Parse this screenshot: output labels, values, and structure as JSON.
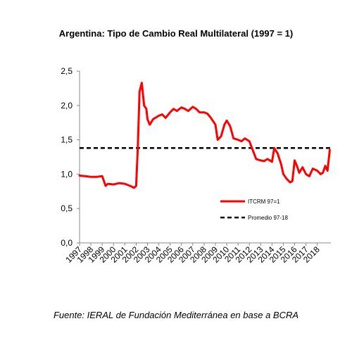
{
  "chart_data": {
    "type": "line",
    "title": "Argentina: Tipo de Cambio Real Multilateral (1997 = 1)",
    "source": "Fuente: IERAL de Fundación Mediterránea en base a BCRA",
    "ylim": [
      0,
      2.5
    ],
    "yticks": [
      "0,0",
      "0,5",
      "1,0",
      "1,5",
      "2,0",
      "2,5"
    ],
    "xticks": [
      "1997",
      "1998",
      "1999",
      "2000",
      "2001",
      "2002",
      "2003",
      "2004",
      "2005",
      "2006",
      "2007",
      "2008",
      "2009",
      "2010",
      "2011",
      "2012",
      "2013",
      "2014",
      "2015",
      "2016",
      "2017",
      "2018"
    ],
    "xlim": [
      1997,
      2019.2
    ],
    "legend_position": "lower-right",
    "colors": {
      "itcrm": "#ff0000",
      "promedio": "#000000"
    },
    "series": [
      {
        "name": "ITCRM 97=1",
        "x": [
          1997,
          1997.5,
          1998,
          1998.5,
          1999,
          1999.3,
          1999.5,
          2000,
          2000.5,
          2001,
          2001.3,
          2001.6,
          2001.8,
          2002,
          2002.15,
          2002.3,
          2002.5,
          2002.7,
          2002.9,
          2003,
          2003.2,
          2003.5,
          2004,
          2004.3,
          2004.6,
          2005,
          2005.3,
          2005.6,
          2006,
          2006.3,
          2006.6,
          2007,
          2007.3,
          2007.6,
          2008,
          2008.3,
          2008.6,
          2009,
          2009.2,
          2009.5,
          2009.8,
          2010,
          2010.3,
          2010.6,
          2011,
          2011.3,
          2011.6,
          2012,
          2012.3,
          2012.6,
          2013,
          2013.3,
          2013.6,
          2014,
          2014.2,
          2014.5,
          2014.8,
          2015,
          2015.3,
          2015.6,
          2015.8,
          2016,
          2016.2,
          2016.4,
          2016.7,
          2017,
          2017.3,
          2017.6,
          2018,
          2018.3,
          2018.5,
          2018.7,
          2018.9,
          2019,
          2019.1
        ],
        "y": [
          0.98,
          0.97,
          0.96,
          0.96,
          0.97,
          0.83,
          0.86,
          0.85,
          0.87,
          0.86,
          0.84,
          0.82,
          0.8,
          0.83,
          1.4,
          2.2,
          2.33,
          2.0,
          1.95,
          1.8,
          1.72,
          1.8,
          1.85,
          1.87,
          1.82,
          1.9,
          1.95,
          1.92,
          1.97,
          1.95,
          1.92,
          1.98,
          1.95,
          1.9,
          1.9,
          1.88,
          1.82,
          1.72,
          1.5,
          1.55,
          1.72,
          1.78,
          1.7,
          1.52,
          1.5,
          1.48,
          1.52,
          1.48,
          1.35,
          1.22,
          1.2,
          1.19,
          1.22,
          1.18,
          1.38,
          1.3,
          1.15,
          1.0,
          0.93,
          0.88,
          0.9,
          1.2,
          1.12,
          1.02,
          1.1,
          1.0,
          0.97,
          1.08,
          1.05,
          1.0,
          1.02,
          1.12,
          1.05,
          1.2,
          1.35
        ]
      },
      {
        "name": "Promedio 97-18",
        "x": [
          1997,
          2019.2
        ],
        "y": [
          1.38,
          1.38
        ]
      }
    ]
  }
}
